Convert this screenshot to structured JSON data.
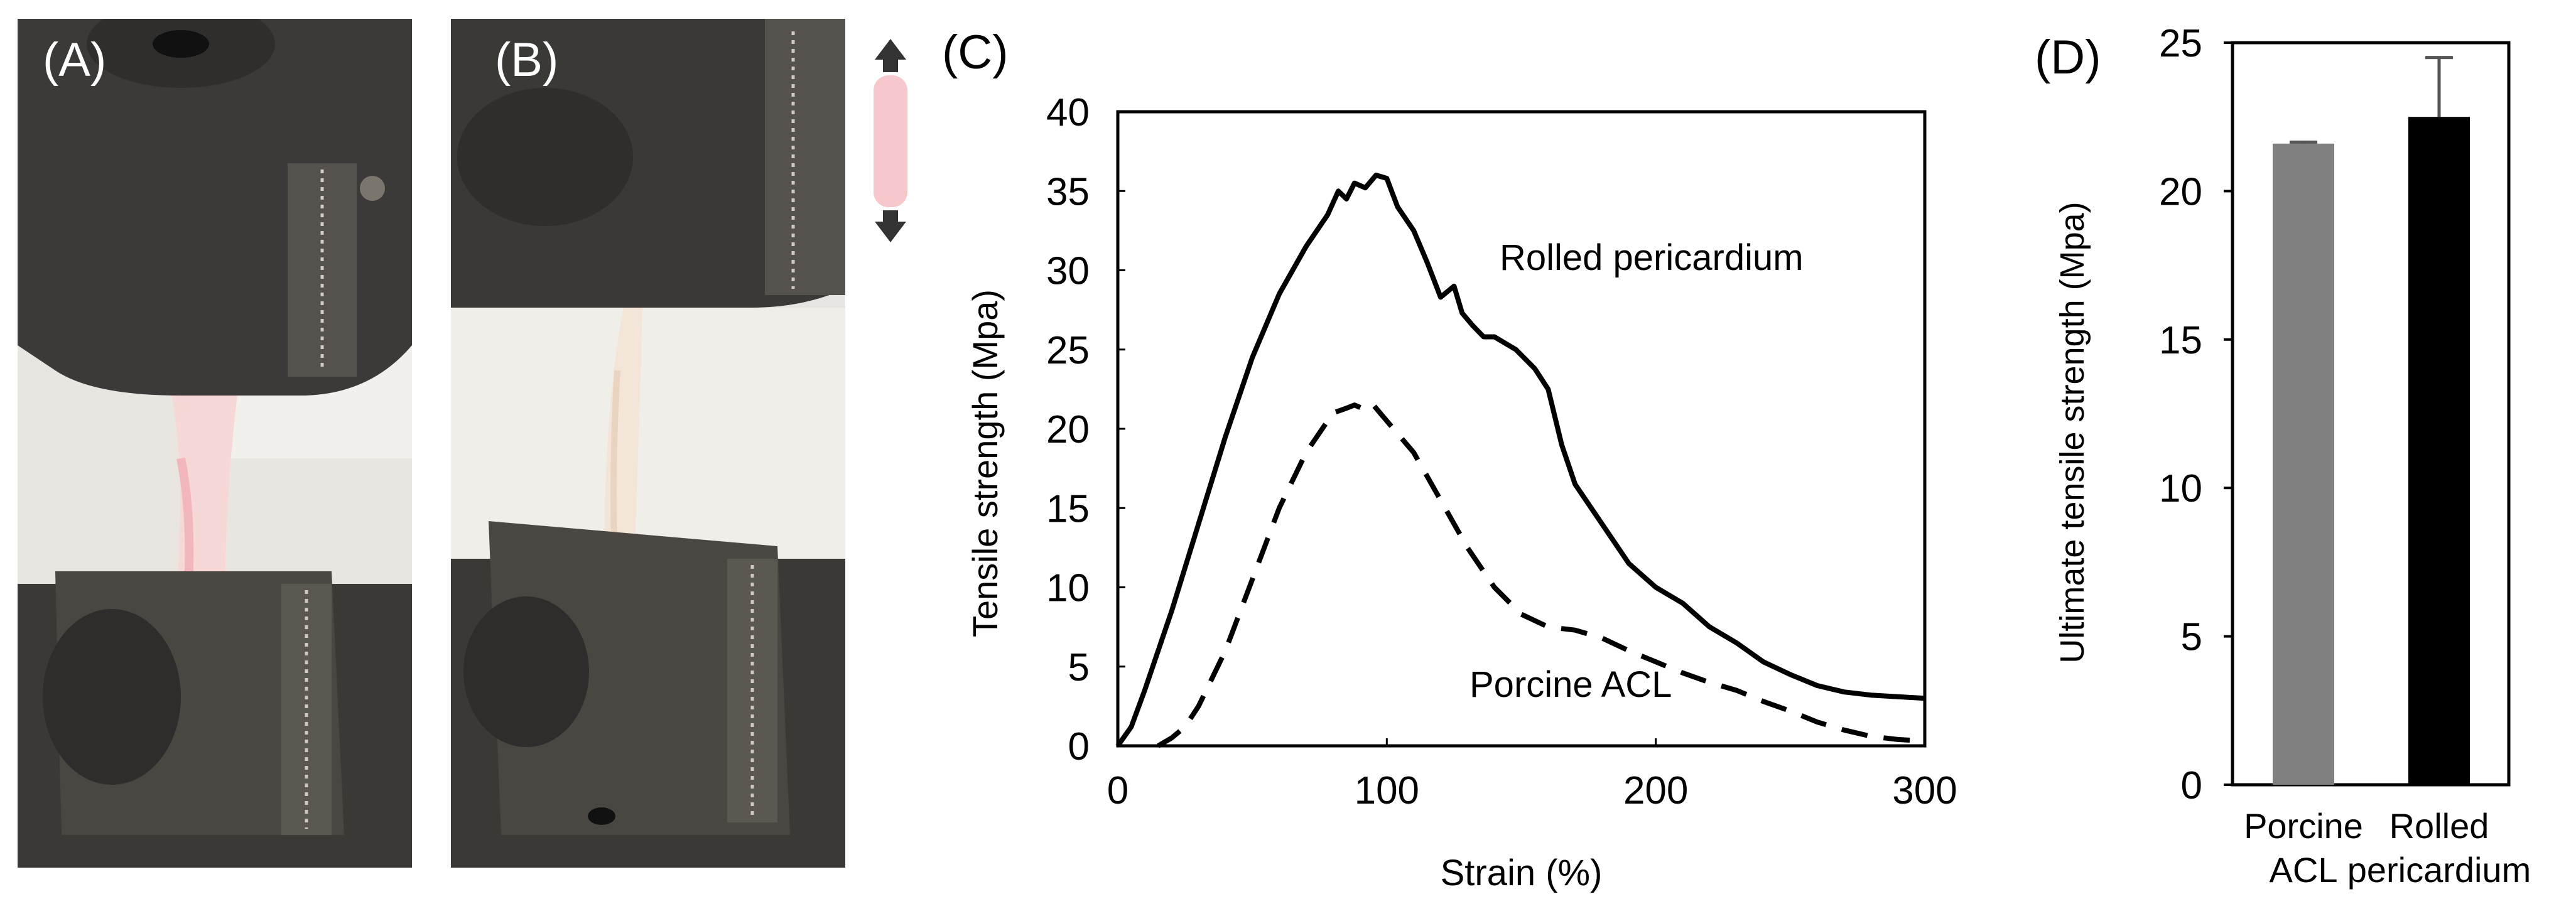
{
  "panels": {
    "a_label": "(A)",
    "b_label": "(B)",
    "c_label": "(C)",
    "d_label": "(D)"
  },
  "colors": {
    "line": "#000000",
    "bar_porcine": "#808080",
    "bar_rolled": "#000000",
    "photo_background": "#e9e6e1",
    "clamp_metal": "#3b3a38",
    "tissue_pink": "#f6c8cc"
  },
  "icons": [
    "double-arrow-icon"
  ],
  "chart_data": [
    {
      "type": "line",
      "xlabel": "Strain (%)",
      "ylabel": "Tensile strength (Mpa)",
      "xlim": [
        0,
        300
      ],
      "ylim": [
        0,
        40
      ],
      "xticks": [
        0,
        100,
        200,
        300
      ],
      "yticks": [
        0,
        5,
        10,
        15,
        20,
        25,
        30,
        35,
        40
      ],
      "grid": false,
      "series": [
        {
          "name": "Rolled pericardium",
          "style": "solid",
          "x": [
            0,
            5,
            10,
            20,
            30,
            40,
            50,
            60,
            70,
            78,
            82,
            85,
            88,
            92,
            96,
            100,
            104,
            110,
            115,
            120,
            125,
            128,
            132,
            136,
            140,
            148,
            155,
            160,
            165,
            170,
            180,
            190,
            200,
            210,
            220,
            230,
            240,
            250,
            260,
            270,
            280,
            290,
            300
          ],
          "y": [
            0,
            1.2,
            3.5,
            8.5,
            14,
            19.5,
            24.5,
            28.5,
            31.5,
            33.5,
            35,
            34.5,
            35.5,
            35.2,
            36,
            35.8,
            34,
            32.5,
            30.5,
            28.3,
            29,
            27.3,
            26.5,
            25.8,
            25.8,
            25,
            23.8,
            22.5,
            19,
            16.5,
            14,
            11.5,
            10,
            9,
            7.5,
            6.5,
            5.3,
            4.5,
            3.8,
            3.4,
            3.2,
            3.1,
            3.0
          ]
        },
        {
          "name": "Porcine ACL",
          "style": "dashed",
          "x": [
            15,
            20,
            25,
            30,
            40,
            50,
            60,
            70,
            80,
            85,
            88,
            92,
            95,
            100,
            110,
            120,
            130,
            140,
            150,
            160,
            170,
            180,
            190,
            200,
            210,
            220,
            230,
            240,
            250,
            260,
            270,
            280,
            290,
            300
          ],
          "y": [
            0,
            0.5,
            1.2,
            2.5,
            6,
            10.5,
            15,
            18.5,
            21,
            21.3,
            21.5,
            21.2,
            21.5,
            20.5,
            18.5,
            15.5,
            12.5,
            10,
            8.3,
            7.5,
            7.3,
            6.8,
            6,
            5.3,
            4.6,
            4,
            3.5,
            2.8,
            2.2,
            1.5,
            1,
            0.6,
            0.4,
            0.3
          ]
        }
      ]
    },
    {
      "type": "bar",
      "ylabel": "Ultimate tensile strength (Mpa)",
      "ylim": [
        0,
        25
      ],
      "yticks": [
        0,
        5,
        10,
        15,
        20,
        25
      ],
      "categories": [
        "Porcine ACL",
        "Rolled pericardium"
      ],
      "category_lines": [
        [
          "Porcine",
          "ACL"
        ],
        [
          "Rolled",
          "pericardium"
        ]
      ],
      "values": [
        21.6,
        22.5
      ],
      "errors": [
        0.05,
        2.0
      ]
    }
  ]
}
